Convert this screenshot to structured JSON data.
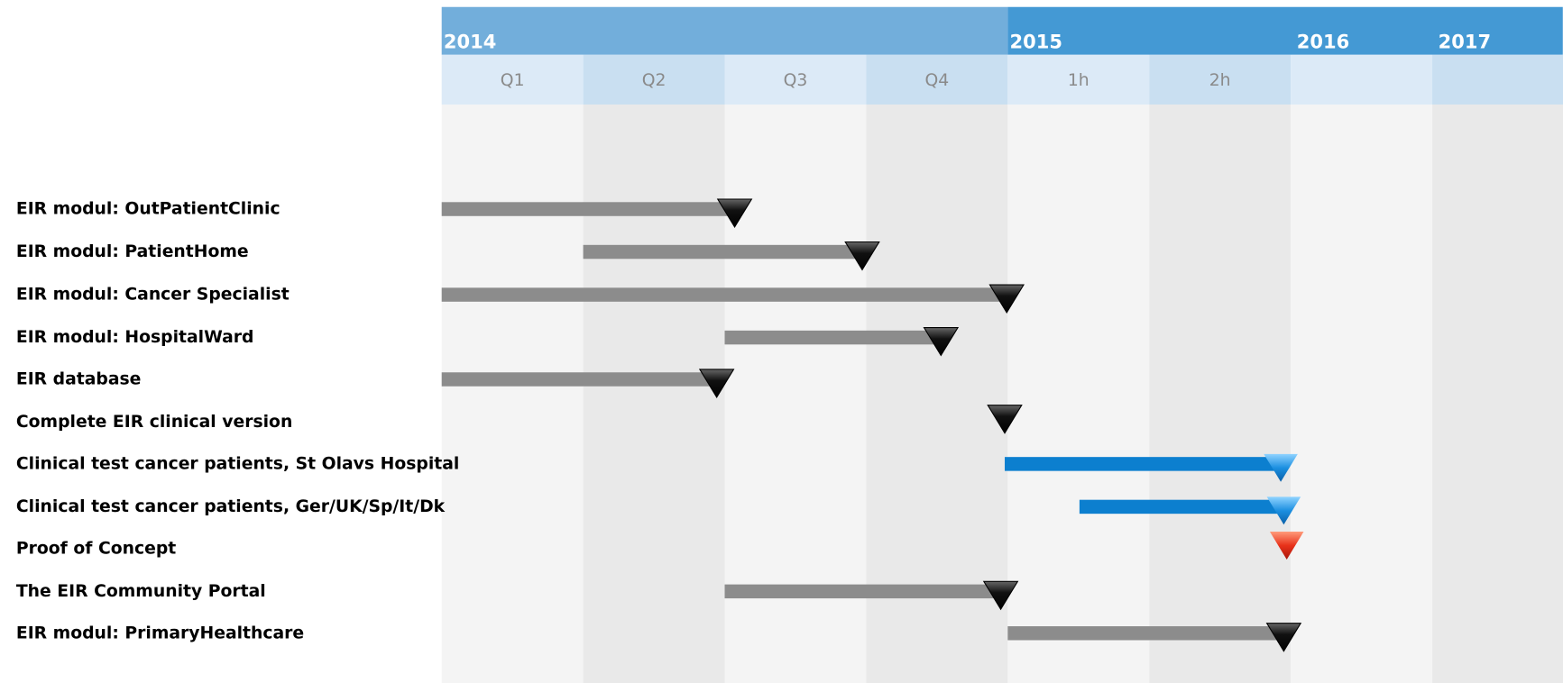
{
  "header": {
    "years": [
      "2014",
      "2015",
      "2016",
      "2017"
    ],
    "periods": [
      "Q1",
      "Q2",
      "Q3",
      "Q4",
      "1h",
      "2h"
    ]
  },
  "rows": [
    {
      "label": "EIR modul: OutPatientClinic"
    },
    {
      "label": "EIR modul: PatientHome"
    },
    {
      "label": "EIR modul: Cancer Specialist"
    },
    {
      "label": "EIR modul: HospitalWard"
    },
    {
      "label": "EIR database"
    },
    {
      "label": "Complete EIR clinical version"
    },
    {
      "label": "Clinical test cancer patients, St Olavs Hospital"
    },
    {
      "label": "Clinical test cancer patients, Ger/UK/Sp/It/Dk"
    },
    {
      "label": "Proof of Concept"
    },
    {
      "label": "The EIR Community Portal"
    },
    {
      "label": "EIR modul: PrimaryHealthcare"
    }
  ]
}
